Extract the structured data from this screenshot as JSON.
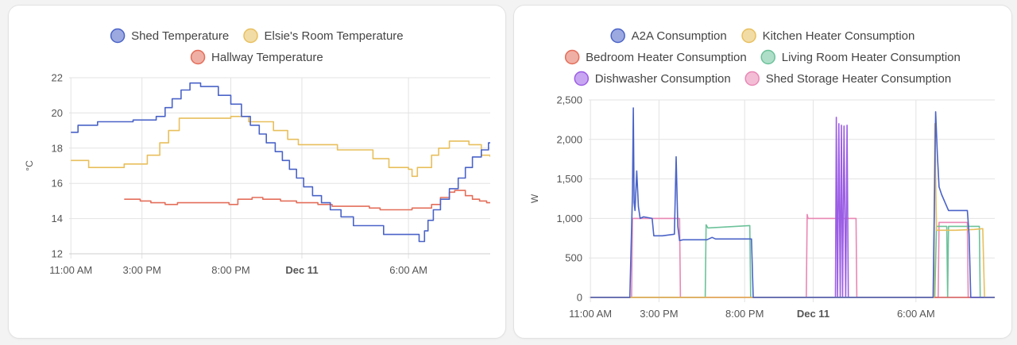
{
  "chart_data": [
    {
      "type": "line",
      "title": "",
      "ylabel": "°C",
      "ylim": [
        12,
        22
      ],
      "yticks": [
        "12",
        "14",
        "16",
        "18",
        "20",
        "22"
      ],
      "xticks": [
        {
          "h": 0,
          "label": "11:00 AM",
          "bold": false
        },
        {
          "h": 4,
          "label": "3:00 PM",
          "bold": false
        },
        {
          "h": 9,
          "label": "8:00 PM",
          "bold": false
        },
        {
          "h": 13,
          "label": "Dec 11",
          "bold": true
        },
        {
          "h": 19,
          "label": "6:00 AM",
          "bold": false
        }
      ],
      "xlim_hours": [
        -0.1,
        23.6
      ],
      "grid": true,
      "legend_position": "top",
      "series": [
        {
          "name": "Shed Temperature",
          "color": "#4a63c8",
          "step": true,
          "points": [
            [
              0,
              18.9
            ],
            [
              0.4,
              19.3
            ],
            [
              1.5,
              19.5
            ],
            [
              3.5,
              19.6
            ],
            [
              4.8,
              19.8
            ],
            [
              5.3,
              20.3
            ],
            [
              5.7,
              20.8
            ],
            [
              6.2,
              21.3
            ],
            [
              6.7,
              21.7
            ],
            [
              7.3,
              21.5
            ],
            [
              8.3,
              21.0
            ],
            [
              9.0,
              20.5
            ],
            [
              9.6,
              19.8
            ],
            [
              10.1,
              19.3
            ],
            [
              10.6,
              18.8
            ],
            [
              11.0,
              18.3
            ],
            [
              11.5,
              17.8
            ],
            [
              11.9,
              17.3
            ],
            [
              12.3,
              16.8
            ],
            [
              12.7,
              16.3
            ],
            [
              13.1,
              15.8
            ],
            [
              13.6,
              15.3
            ],
            [
              14.1,
              14.9
            ],
            [
              14.6,
              14.5
            ],
            [
              15.2,
              14.1
            ],
            [
              15.9,
              13.6
            ],
            [
              17.0,
              13.6
            ],
            [
              17.6,
              13.1
            ],
            [
              18.5,
              13.1
            ],
            [
              19.3,
              13.1
            ],
            [
              19.6,
              12.7
            ],
            [
              19.9,
              13.3
            ],
            [
              20.1,
              13.9
            ],
            [
              20.4,
              14.5
            ],
            [
              20.8,
              15.1
            ],
            [
              21.3,
              15.7
            ],
            [
              21.8,
              16.3
            ],
            [
              22.2,
              16.9
            ],
            [
              22.6,
              17.5
            ],
            [
              23.1,
              17.9
            ],
            [
              23.5,
              18.3
            ],
            [
              23.6,
              18.3
            ]
          ]
        },
        {
          "name": "Elsie's Room Temperature",
          "color": "#e8bf5c",
          "step": true,
          "points": [
            [
              0,
              17.3
            ],
            [
              1.0,
              16.9
            ],
            [
              3.0,
              17.1
            ],
            [
              4.3,
              17.6
            ],
            [
              5.0,
              18.3
            ],
            [
              5.5,
              19.0
            ],
            [
              6.1,
              19.7
            ],
            [
              9.0,
              19.8
            ],
            [
              10.0,
              19.5
            ],
            [
              11.4,
              19.0
            ],
            [
              12.2,
              18.5
            ],
            [
              12.8,
              18.2
            ],
            [
              15.0,
              17.9
            ],
            [
              17.0,
              17.4
            ],
            [
              17.9,
              16.9
            ],
            [
              19.0,
              16.8
            ],
            [
              19.2,
              16.4
            ],
            [
              19.5,
              16.9
            ],
            [
              20.3,
              17.6
            ],
            [
              20.7,
              18.0
            ],
            [
              21.3,
              18.4
            ],
            [
              22.4,
              18.2
            ],
            [
              23.1,
              17.6
            ],
            [
              23.6,
              17.5
            ]
          ]
        },
        {
          "name": "Hallway Temperature",
          "color": "#e46e5a",
          "step": true,
          "points": [
            [
              3.0,
              15.1
            ],
            [
              3.9,
              15.0
            ],
            [
              4.5,
              14.9
            ],
            [
              5.3,
              14.8
            ],
            [
              6.0,
              14.9
            ],
            [
              7.5,
              14.9
            ],
            [
              8.9,
              14.8
            ],
            [
              9.4,
              15.1
            ],
            [
              10.2,
              15.2
            ],
            [
              10.8,
              15.1
            ],
            [
              11.8,
              15.0
            ],
            [
              12.7,
              14.9
            ],
            [
              13.9,
              14.8
            ],
            [
              14.7,
              14.7
            ],
            [
              16.8,
              14.6
            ],
            [
              17.4,
              14.5
            ],
            [
              18.6,
              14.5
            ],
            [
              19.2,
              14.6
            ],
            [
              19.8,
              14.6
            ],
            [
              20.3,
              14.8
            ],
            [
              20.8,
              15.2
            ],
            [
              21.3,
              15.5
            ],
            [
              21.6,
              15.6
            ],
            [
              22.2,
              15.3
            ],
            [
              22.6,
              15.1
            ],
            [
              23.0,
              15.0
            ],
            [
              23.4,
              14.9
            ],
            [
              23.6,
              14.9
            ]
          ]
        }
      ]
    },
    {
      "type": "line",
      "title": "",
      "ylabel": "W",
      "ylim": [
        0,
        2500
      ],
      "yticks": [
        "0",
        "500",
        "1,000",
        "1,500",
        "2,000",
        "2,500"
      ],
      "xticks": [
        {
          "h": 0,
          "label": "11:00 AM",
          "bold": false
        },
        {
          "h": 4,
          "label": "3:00 PM",
          "bold": false
        },
        {
          "h": 9,
          "label": "8:00 PM",
          "bold": false
        },
        {
          "h": 13,
          "label": "Dec 11",
          "bold": true
        },
        {
          "h": 19,
          "label": "6:00 AM",
          "bold": false
        }
      ],
      "xlim_hours": [
        -0.1,
        23.6
      ],
      "grid": true,
      "legend_position": "top",
      "series": [
        {
          "name": "A2A Consumption",
          "color": "#4a63c8",
          "step": false,
          "points": [
            [
              0,
              0
            ],
            [
              2.3,
              0
            ],
            [
              2.45,
              1300
            ],
            [
              2.5,
              2400
            ],
            [
              2.55,
              1200
            ],
            [
              2.6,
              1100
            ],
            [
              2.7,
              1600
            ],
            [
              2.8,
              1150
            ],
            [
              2.9,
              1000
            ],
            [
              3.1,
              1020
            ],
            [
              3.6,
              1000
            ],
            [
              3.7,
              780
            ],
            [
              4.2,
              780
            ],
            [
              4.9,
              800
            ],
            [
              5.0,
              1780
            ],
            [
              5.1,
              900
            ],
            [
              5.2,
              720
            ],
            [
              5.4,
              730
            ],
            [
              6.8,
              730
            ],
            [
              7.1,
              760
            ],
            [
              7.3,
              740
            ],
            [
              9.0,
              740
            ],
            [
              9.4,
              740
            ],
            [
              9.5,
              0
            ],
            [
              20.0,
              0
            ],
            [
              20.15,
              2350
            ],
            [
              20.25,
              1800
            ],
            [
              20.35,
              1400
            ],
            [
              20.5,
              1300
            ],
            [
              20.9,
              1100
            ],
            [
              22.0,
              1100
            ],
            [
              22.1,
              800
            ],
            [
              22.2,
              0
            ],
            [
              23.6,
              0
            ]
          ]
        },
        {
          "name": "Kitchen Heater Consumption",
          "color": "#e8bf5c",
          "step": false,
          "points": [
            [
              0,
              0
            ],
            [
              20.05,
              0
            ],
            [
              20.1,
              2200
            ],
            [
              20.2,
              850
            ],
            [
              20.8,
              850
            ],
            [
              21.3,
              850
            ],
            [
              22.4,
              860
            ],
            [
              22.9,
              870
            ],
            [
              23.0,
              0
            ],
            [
              23.6,
              0
            ]
          ]
        },
        {
          "name": "Bedroom Heater Consumption",
          "color": "#e46e5a",
          "step": false,
          "points": [
            [
              0,
              0
            ],
            [
              23.6,
              0
            ]
          ]
        },
        {
          "name": "Living Room Heater Consumption",
          "color": "#6cc29a",
          "step": false,
          "points": [
            [
              0,
              0
            ],
            [
              6.7,
              0
            ],
            [
              6.75,
              920
            ],
            [
              6.85,
              880
            ],
            [
              9.3,
              910
            ],
            [
              9.35,
              0
            ],
            [
              20.1,
              0
            ],
            [
              20.2,
              900
            ],
            [
              20.8,
              900
            ],
            [
              20.85,
              0
            ],
            [
              20.9,
              900
            ],
            [
              22.7,
              900
            ],
            [
              22.75,
              0
            ],
            [
              23.6,
              0
            ]
          ]
        },
        {
          "name": "Dishwasher Consumption",
          "color": "#9b5de5",
          "step": false,
          "points": [
            [
              0,
              0
            ],
            [
              14.3,
              0
            ],
            [
              14.35,
              2280
            ],
            [
              14.42,
              0
            ],
            [
              14.5,
              2200
            ],
            [
              14.58,
              0
            ],
            [
              14.65,
              2180
            ],
            [
              14.72,
              0
            ],
            [
              14.8,
              2170
            ],
            [
              14.9,
              0
            ],
            [
              14.98,
              2180
            ],
            [
              15.05,
              0
            ],
            [
              15.6,
              0
            ],
            [
              23.6,
              0
            ]
          ]
        },
        {
          "name": "Shed Storage Heater Consumption",
          "color": "#e987b4",
          "step": false,
          "points": [
            [
              0,
              0
            ],
            [
              2.4,
              0
            ],
            [
              2.45,
              1000
            ],
            [
              5.2,
              1000
            ],
            [
              5.25,
              0
            ],
            [
              12.6,
              0
            ],
            [
              12.65,
              1050
            ],
            [
              12.7,
              1000
            ],
            [
              15.5,
              1000
            ],
            [
              15.55,
              0
            ],
            [
              20.3,
              0
            ],
            [
              20.35,
              950
            ],
            [
              22.0,
              950
            ],
            [
              22.05,
              0
            ],
            [
              23.6,
              0
            ]
          ]
        }
      ]
    }
  ]
}
